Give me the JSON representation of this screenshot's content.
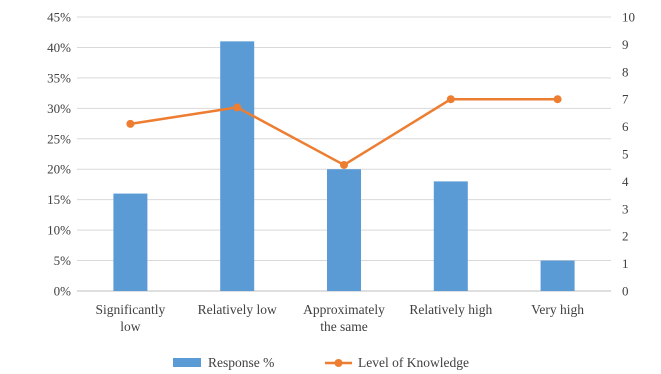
{
  "chart_data": {
    "type": "bar",
    "categories": [
      [
        "Significantly",
        "low"
      ],
      [
        "Relatively low"
      ],
      [
        "Approximately",
        "the same"
      ],
      [
        "Relatively high"
      ],
      [
        "Very high"
      ]
    ],
    "series": [
      {
        "name": "Response %",
        "type": "bar",
        "axis": "left",
        "color": "#5b9bd5",
        "values": [
          16,
          41,
          20,
          18,
          5
        ]
      },
      {
        "name": "Level of Knowledge",
        "type": "line",
        "axis": "right",
        "color": "#ed7d31",
        "values": [
          6.1,
          6.7,
          4.6,
          7.0,
          7.0
        ]
      }
    ],
    "left_axis": {
      "min": 0,
      "max": 45,
      "step": 5,
      "tick_labels": [
        "0%",
        "5%",
        "10%",
        "15%",
        "20%",
        "25%",
        "30%",
        "35%",
        "40%",
        "45%"
      ]
    },
    "right_axis": {
      "min": 0,
      "max": 10,
      "step": 1,
      "tick_labels": [
        "0",
        "1",
        "2",
        "3",
        "4",
        "5",
        "6",
        "7",
        "8",
        "9",
        "10"
      ]
    },
    "grid": true,
    "legend": "bottom"
  }
}
